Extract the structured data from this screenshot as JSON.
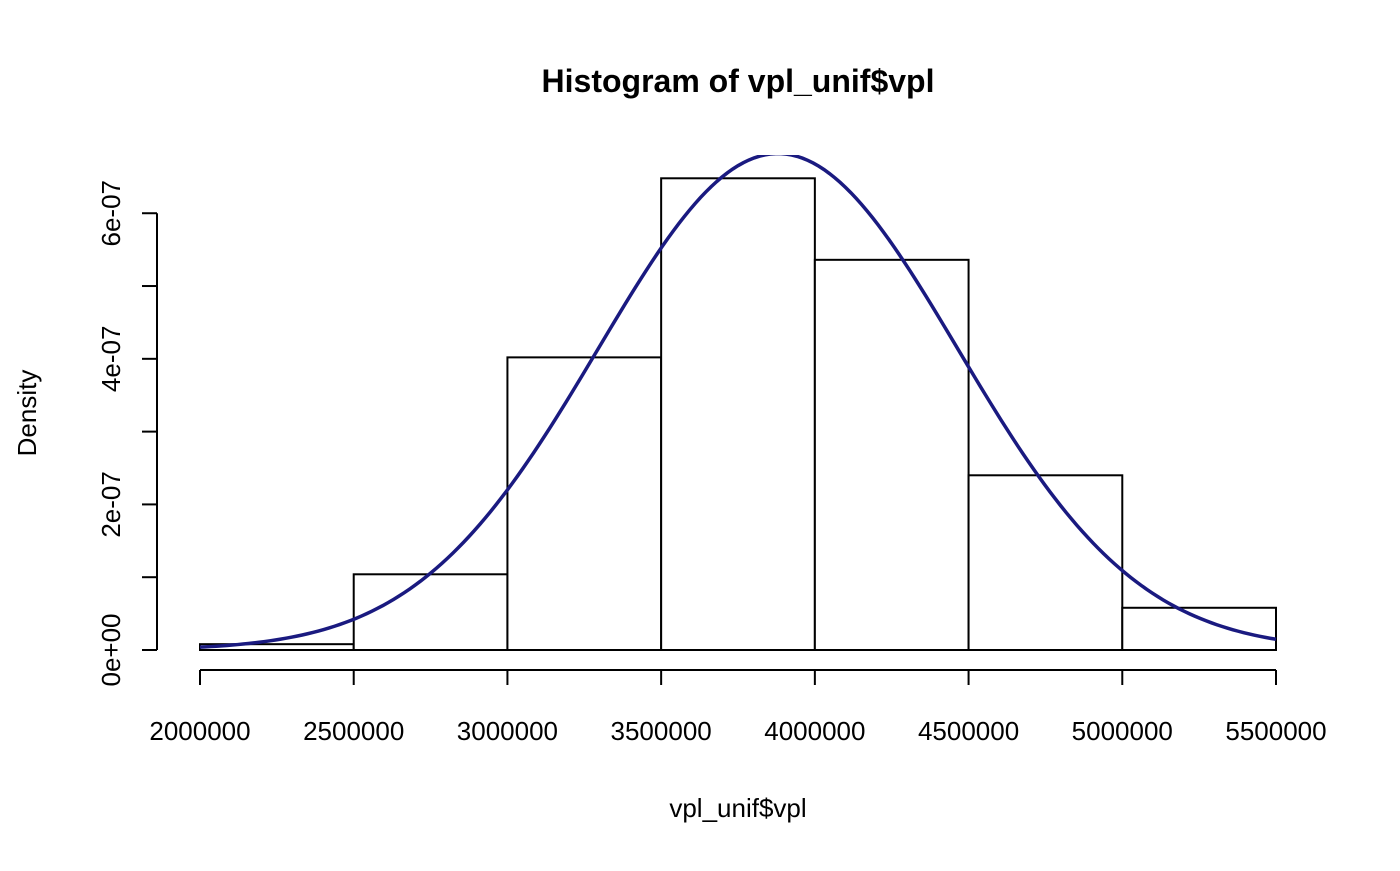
{
  "chart_data": {
    "type": "bar",
    "title": "Histogram of vpl_unif$vpl",
    "xlabel": "vpl_unif$vpl",
    "ylabel": "Density",
    "xlim": [
      2000000,
      5500000
    ],
    "ylim": [
      0,
      6.8e-07
    ],
    "grid": false,
    "bins": [
      {
        "start": 2000000,
        "end": 2500000,
        "density": 8e-09
      },
      {
        "start": 2500000,
        "end": 3000000,
        "density": 1.04e-07
      },
      {
        "start": 3000000,
        "end": 3500000,
        "density": 4.02e-07
      },
      {
        "start": 3500000,
        "end": 4000000,
        "density": 6.48e-07
      },
      {
        "start": 4000000,
        "end": 4500000,
        "density": 5.36e-07
      },
      {
        "start": 4500000,
        "end": 5000000,
        "density": 2.4e-07
      },
      {
        "start": 5000000,
        "end": 5500000,
        "density": 5.8e-08
      }
    ],
    "x_ticks": [
      {
        "value": 2000000,
        "label": "2000000"
      },
      {
        "value": 2500000,
        "label": "2500000"
      },
      {
        "value": 3000000,
        "label": "3000000"
      },
      {
        "value": 3500000,
        "label": "3500000"
      },
      {
        "value": 4000000,
        "label": "4000000"
      },
      {
        "value": 4500000,
        "label": "4500000"
      },
      {
        "value": 5000000,
        "label": "5000000"
      },
      {
        "value": 5500000,
        "label": "5500000"
      }
    ],
    "y_ticks": [
      {
        "value": 0,
        "label": "0e+00"
      },
      {
        "value": 1e-07,
        "label": ""
      },
      {
        "value": 2e-07,
        "label": "2e-07"
      },
      {
        "value": 3e-07,
        "label": ""
      },
      {
        "value": 4e-07,
        "label": "4e-07"
      },
      {
        "value": 5e-07,
        "label": ""
      },
      {
        "value": 6e-07,
        "label": "6e-07"
      }
    ],
    "density_curve": {
      "mean": 3880000,
      "sd": 585000,
      "color": "#1a1a80"
    }
  }
}
